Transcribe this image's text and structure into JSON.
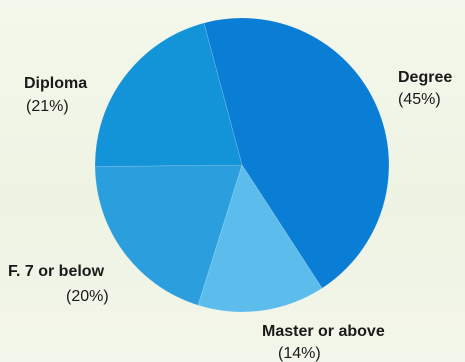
{
  "chart_data": {
    "type": "pie",
    "title": "",
    "slices": [
      {
        "label": "Degree",
        "value": 45,
        "value_label": "(45%)",
        "color": "#0a7dd4"
      },
      {
        "label": "Master or above",
        "value": 14,
        "value_label": "(14%)",
        "color": "#5cbcec"
      },
      {
        "label": "F. 7 or below",
        "value": 20,
        "value_label": "(20%)",
        "color": "#2b9fde"
      },
      {
        "label": "Diploma",
        "value": 21,
        "value_label": "(21%)",
        "color": "#1393d8"
      }
    ],
    "start_angle_deg": -15,
    "direction": "clockwise",
    "legend": "none",
    "labels": "outside"
  }
}
